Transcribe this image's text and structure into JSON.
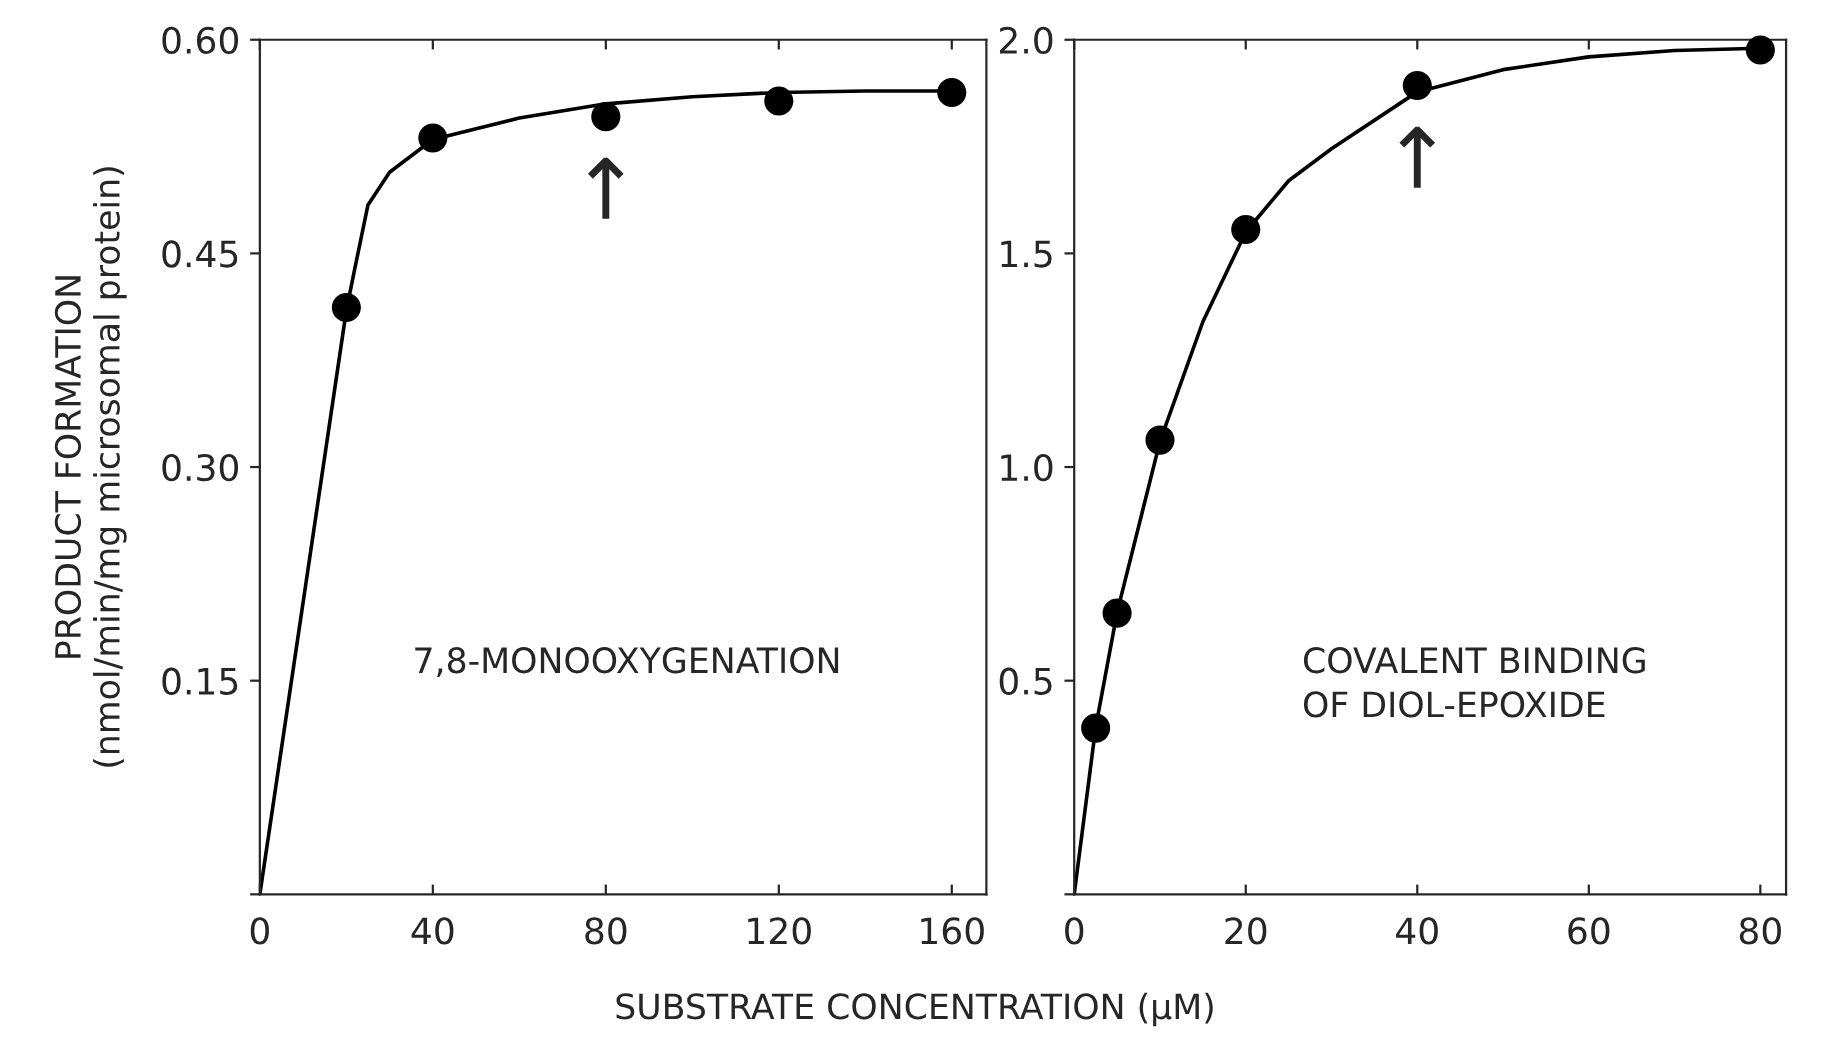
{
  "chart_data": [
    {
      "type": "scatter",
      "ylabel": "PRODUCT FORMATION\n(nmol/min/mg microsomal protein)",
      "xlabel": "SUBSTRATE CONCENTRATION (μM)",
      "xlim": [
        0,
        168
      ],
      "ylim": [
        0,
        0.6
      ],
      "xticks": [
        0,
        40,
        80,
        120,
        160
      ],
      "yticks": [
        {
          "value": 0,
          "label": null
        },
        0.15,
        {
          "value": 0.3,
          "label": "0.30"
        },
        0.45,
        {
          "value": 0.6,
          "label": "0.60"
        }
      ],
      "grid": false,
      "series": [
        {
          "color": "#000000",
          "marker": "circle",
          "x": [
            20,
            40,
            80,
            120,
            160
          ],
          "values": [
            0.412,
            0.531,
            0.546,
            0.557,
            0.563
          ]
        },
        {
          "type": "line",
          "color": "#000000",
          "marker": "none",
          "x": [
            0,
            20,
            22,
            25,
            30,
            40,
            60,
            80,
            100,
            120,
            140,
            160
          ],
          "values": [
            0,
            0.41,
            0.44,
            0.484,
            0.507,
            0.53,
            0.545,
            0.555,
            0.56,
            0.563,
            0.564,
            0.564
          ]
        }
      ],
      "annotations": [
        "7,8-MONOOXYGENATION",
        {
          "text": "↑",
          "x": 80,
          "y": 0.546
        }
      ]
    },
    {
      "type": "scatter",
      "xlim": [
        0,
        83
      ],
      "ylim": [
        0,
        2.0
      ],
      "xticks": [
        0,
        20,
        40,
        60,
        80
      ],
      "yticks": [
        {
          "value": 0,
          "label": null
        },
        0.5,
        {
          "value": 1.0,
          "label": "1.0"
        },
        1.5,
        {
          "value": 2.0,
          "label": "2.0"
        }
      ],
      "grid": false,
      "series": [
        {
          "color": "#000000",
          "marker": "circle",
          "x": [
            2.5,
            5,
            10,
            20,
            40,
            80
          ],
          "values": [
            0.389,
            0.658,
            1.063,
            1.556,
            1.893,
            1.976
          ]
        },
        {
          "type": "line",
          "color": "#000000",
          "marker": "none",
          "x": [
            0,
            2.5,
            5,
            10,
            15,
            20,
            25,
            30,
            40,
            50,
            60,
            70,
            80
          ],
          "values": [
            0,
            0.39,
            0.66,
            1.06,
            1.34,
            1.55,
            1.67,
            1.745,
            1.878,
            1.93,
            1.96,
            1.975,
            1.98
          ]
        }
      ],
      "annotations": [
        "COVALENT BINDING\nOF DIOL-EPOXIDE",
        {
          "text": "↑",
          "x": 40,
          "y": 1.893
        }
      ]
    }
  ]
}
